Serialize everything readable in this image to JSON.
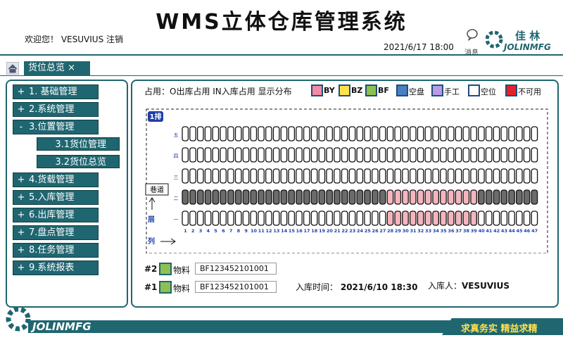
{
  "header": {
    "title": "WMS立体仓库管理系统",
    "welcome": "欢迎您！",
    "user": "VESUVIUS",
    "logout": "注销",
    "datetime": "2021/6/17 18:00",
    "message": "消息",
    "logo_cn": "佳 林",
    "logo_en": "JOLINMFG"
  },
  "tab": {
    "title": "货位总览",
    "close": "×"
  },
  "menu": [
    {
      "icon": "+",
      "label": "1. 基础管理",
      "level": 1
    },
    {
      "icon": "+",
      "label": "2.系统管理",
      "level": 1
    },
    {
      "icon": "-",
      "label": "3.位置管理",
      "level": 1
    },
    {
      "label": "3.1货位管理",
      "level": 2
    },
    {
      "label": "3.2货位总览",
      "level": 2
    },
    {
      "icon": "+",
      "label": "4.货载管理",
      "level": 1
    },
    {
      "icon": "+",
      "label": "5.入库管理",
      "level": 1
    },
    {
      "icon": "+",
      "label": "6.出库管理",
      "level": 1
    },
    {
      "icon": "+",
      "label": "7.盘点管理",
      "level": 1
    },
    {
      "icon": "+",
      "label": "8.任务管理",
      "level": 1
    },
    {
      "icon": "+",
      "label": "9.系统报表",
      "level": 1
    }
  ],
  "legend": {
    "prefix": "占用：O出库占用  IN入库占用  显示分布",
    "items": [
      {
        "label": "BY",
        "color": "#f28aa5"
      },
      {
        "label": "BZ",
        "color": "#ffe14d"
      },
      {
        "label": "BF",
        "color": "#8cc152"
      },
      {
        "label": "空盘",
        "color": "#4a7fc1"
      },
      {
        "label": "手工",
        "color": "#b99be8"
      },
      {
        "label": "空位",
        "color": "#ffffff"
      },
      {
        "label": "不可用",
        "color": "#e8202a"
      }
    ]
  },
  "rack": {
    "name": "1排",
    "aisle": "巷道",
    "level_label": "层",
    "column_label": "列",
    "status_colors": {
      "空位": "#ffffff",
      "占用": "#6b6b6b",
      "BY": "#f5b5bf"
    },
    "rows": [
      {
        "label": "五",
        "cells": [
          "空位",
          "空位",
          "空位",
          "空位",
          "空位",
          "空位",
          "空位",
          "空位",
          "空位",
          "空位",
          "空位",
          "空位",
          "空位",
          "空位",
          "空位",
          "空位",
          "空位",
          "空位",
          "空位",
          "空位",
          "空位",
          "空位",
          "空位",
          "空位",
          "空位",
          "空位",
          "空位",
          "空位",
          "空位",
          "空位",
          "空位",
          "空位",
          "空位",
          "空位",
          "空位",
          "空位",
          "空位",
          "空位",
          "空位",
          "空位",
          "空位",
          "空位",
          "空位",
          "空位",
          "空位",
          "空位",
          "空位"
        ]
      },
      {
        "label": "四",
        "cells": [
          "空位",
          "空位",
          "空位",
          "空位",
          "空位",
          "空位",
          "空位",
          "空位",
          "空位",
          "空位",
          "空位",
          "空位",
          "空位",
          "空位",
          "空位",
          "空位",
          "空位",
          "空位",
          "空位",
          "空位",
          "空位",
          "空位",
          "空位",
          "空位",
          "空位",
          "空位",
          "空位",
          "空位",
          "空位",
          "空位",
          "空位",
          "空位",
          "空位",
          "空位",
          "空位",
          "空位",
          "空位",
          "空位",
          "空位",
          "空位",
          "空位",
          "空位",
          "空位",
          "空位",
          "空位",
          "空位",
          "空位"
        ]
      },
      {
        "label": "三",
        "cells": [
          "空位",
          "空位",
          "空位",
          "空位",
          "空位",
          "空位",
          "空位",
          "空位",
          "空位",
          "空位",
          "空位",
          "空位",
          "空位",
          "空位",
          "空位",
          "空位",
          "空位",
          "空位",
          "空位",
          "空位",
          "空位",
          "空位",
          "空位",
          "空位",
          "空位",
          "空位",
          "空位",
          "空位",
          "空位",
          "空位",
          "空位",
          "空位",
          "空位",
          "空位",
          "空位",
          "空位",
          "空位",
          "空位",
          "空位",
          "空位",
          "空位",
          "空位",
          "空位",
          "空位",
          "空位",
          "空位",
          "空位"
        ]
      },
      {
        "label": "二",
        "cells": [
          "占用",
          "占用",
          "占用",
          "占用",
          "占用",
          "占用",
          "占用",
          "占用",
          "占用",
          "占用",
          "占用",
          "占用",
          "占用",
          "占用",
          "占用",
          "占用",
          "占用",
          "占用",
          "占用",
          "占用",
          "占用",
          "占用",
          "占用",
          "占用",
          "占用",
          "占用",
          "占用",
          "BY",
          "BY",
          "BY",
          "BY",
          "BY",
          "BY",
          "BY",
          "BY",
          "BY",
          "BY",
          "BY",
          "BY",
          "占用",
          "占用",
          "占用",
          "占用",
          "占用",
          "占用",
          "占用",
          "占用"
        ]
      },
      {
        "label": "一",
        "cells": [
          "空位",
          "空位",
          "空位",
          "空位",
          "空位",
          "空位",
          "空位",
          "空位",
          "空位",
          "空位",
          "空位",
          "空位",
          "空位",
          "空位",
          "空位",
          "空位",
          "空位",
          "空位",
          "空位",
          "空位",
          "空位",
          "空位",
          "空位",
          "空位",
          "空位",
          "空位",
          "空位",
          "BY",
          "BY",
          "BY",
          "BY",
          "BY",
          "BY",
          "BY",
          "BY",
          "BY",
          "BY",
          "BY",
          "BY",
          "空位",
          "空位",
          "空位",
          "空位",
          "空位",
          "空位",
          "空位",
          "空位"
        ]
      }
    ],
    "columns": [
      1,
      2,
      3,
      4,
      5,
      6,
      7,
      8,
      9,
      10,
      11,
      12,
      13,
      14,
      15,
      16,
      17,
      18,
      19,
      20,
      21,
      22,
      23,
      24,
      25,
      26,
      27,
      28,
      29,
      30,
      31,
      32,
      33,
      34,
      35,
      36,
      37,
      38,
      39,
      40,
      41,
      42,
      43,
      44,
      45,
      46,
      47
    ]
  },
  "details": {
    "items": [
      {
        "slot": "#2",
        "label": "物料",
        "code": "BF123452101001",
        "color": "#8cc152"
      },
      {
        "slot": "#1",
        "label": "物料",
        "code": "BF123452101001",
        "color": "#8cc152"
      }
    ],
    "in_time_label": "入库时间：",
    "in_time": "2021/6/10 18:30",
    "in_person_label": "入库人：",
    "in_person": "VESUVIUS"
  },
  "footer": {
    "brand": "JOLINMFG",
    "slogan": "求真务实  精益求精"
  }
}
